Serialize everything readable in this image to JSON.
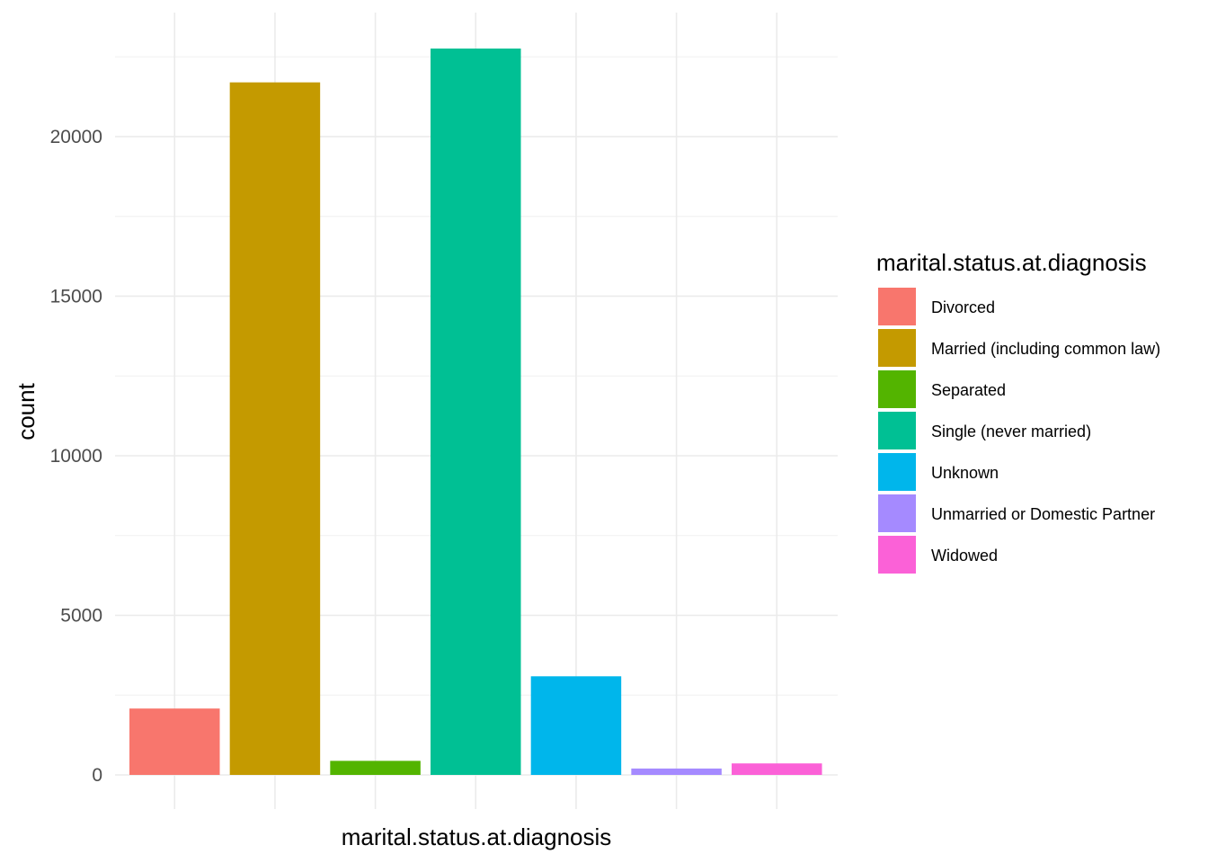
{
  "chart_data": {
    "type": "bar",
    "categories": [
      "Divorced",
      "Married (including common law)",
      "Separated",
      "Single (never married)",
      "Unknown",
      "Unmarried or Domestic Partner",
      "Widowed"
    ],
    "values": [
      2080,
      21700,
      440,
      22760,
      3090,
      200,
      360
    ],
    "colors": [
      "#F8766D",
      "#C49A00",
      "#53B400",
      "#00C094",
      "#00B6EB",
      "#A58AFF",
      "#FB61D7"
    ],
    "xlabel": "marital.status.at.diagnosis",
    "ylabel": "count",
    "ylim": [
      0,
      22760
    ],
    "y_ticks": [
      0,
      5000,
      10000,
      15000,
      20000
    ],
    "y_minor_ticks": [
      2500,
      7500,
      12500,
      17500,
      22500
    ],
    "x_tick_labels_shown": false,
    "grid": true,
    "legend": {
      "title": "marital.status.at.diagnosis",
      "position": "right"
    }
  }
}
